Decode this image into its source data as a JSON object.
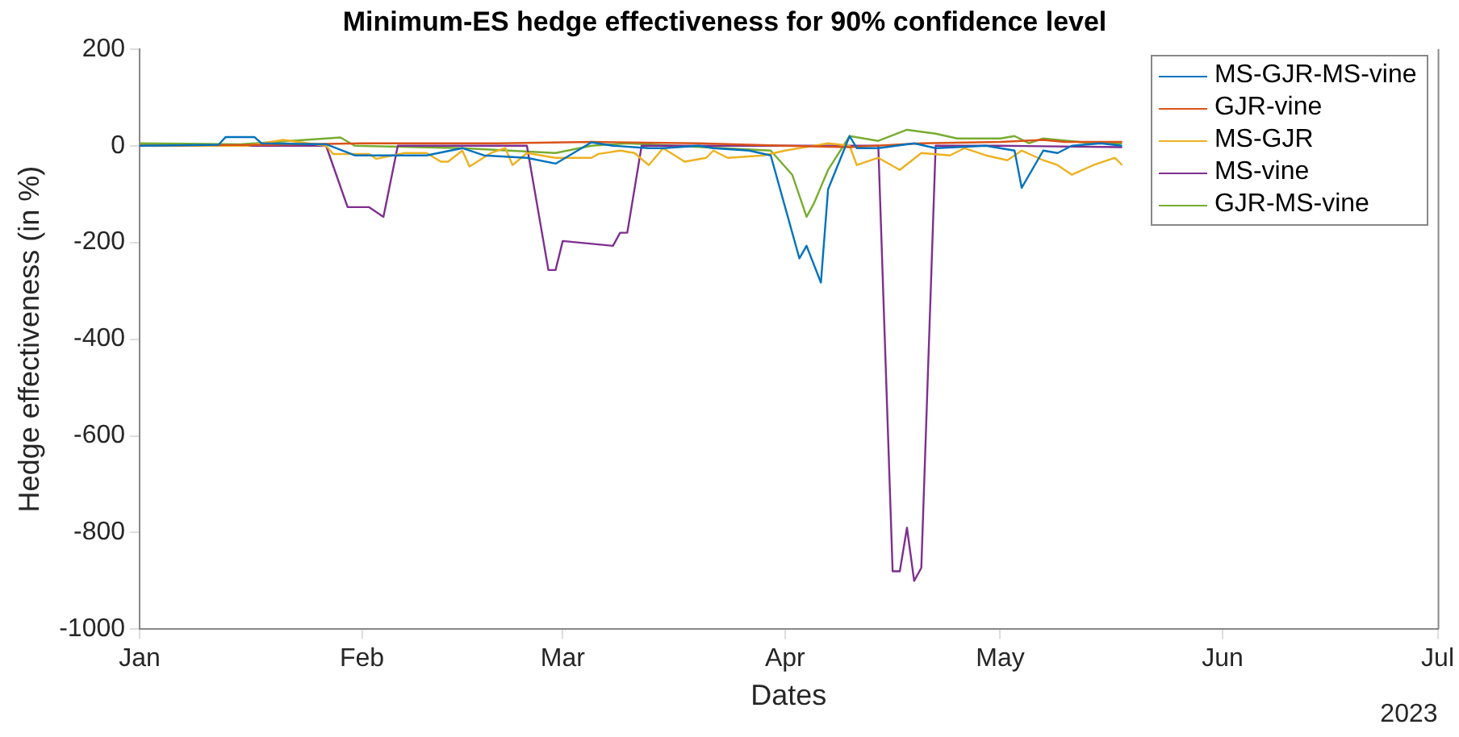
{
  "chart_data": {
    "type": "line",
    "title": "Minimum-ES hedge effectiveness for 90% confidence level",
    "xlabel": "Dates",
    "ylabel": "Hedge effectiveness (in %)",
    "xlim": [
      "2023-01-01",
      "2023-07-01"
    ],
    "xticks": [
      {
        "value": "2023-01-01",
        "label": "Jan"
      },
      {
        "value": "2023-02-01",
        "label": "Feb"
      },
      {
        "value": "2023-03-01",
        "label": "Mar"
      },
      {
        "value": "2023-04-01",
        "label": "Apr"
      },
      {
        "value": "2023-05-01",
        "label": "May"
      },
      {
        "value": "2023-06-01",
        "label": "Jun"
      },
      {
        "value": "2023-07-01",
        "label": "Jul"
      }
    ],
    "ylim": [
      -1000,
      200
    ],
    "yticks": [
      -1000,
      -800,
      -600,
      -400,
      -200,
      0,
      200
    ],
    "grid": false,
    "legend": "top right",
    "marker": "none",
    "line_style": "solid",
    "annotations": [
      "2023"
    ],
    "series": [
      {
        "name": "MS-GJR-MS-vine",
        "color": "#0072bd",
        "x": [
          "2023-01-01",
          "2023-01-12",
          "2023-01-13",
          "2023-01-17",
          "2023-01-18",
          "2023-01-27",
          "2023-01-31",
          "2023-02-10",
          "2023-02-15",
          "2023-02-18",
          "2023-02-24",
          "2023-02-28",
          "2023-03-05",
          "2023-03-08",
          "2023-03-13",
          "2023-03-15",
          "2023-03-20",
          "2023-03-22",
          "2023-03-27",
          "2023-03-30",
          "2023-04-03",
          "2023-04-04",
          "2023-04-06",
          "2023-04-07",
          "2023-04-10",
          "2023-04-11",
          "2023-04-14",
          "2023-04-19",
          "2023-04-22",
          "2023-04-29",
          "2023-05-03",
          "2023-05-04",
          "2023-05-07",
          "2023-05-09",
          "2023-05-11",
          "2023-05-15",
          "2023-05-18"
        ],
        "values": [
          0,
          2,
          18,
          18,
          5,
          3,
          -20,
          -20,
          -5,
          -20,
          -25,
          -37,
          7,
          0,
          -5,
          -5,
          0,
          -5,
          -10,
          -20,
          -233,
          -207,
          -283,
          -90,
          20,
          -5,
          -5,
          5,
          -5,
          0,
          -10,
          -87,
          -10,
          -15,
          0,
          5,
          0
        ]
      },
      {
        "name": "GJR-vine",
        "color": "#d95319",
        "x": [
          "2023-01-01",
          "2023-01-20",
          "2023-02-01",
          "2023-02-20",
          "2023-03-05",
          "2023-03-20",
          "2023-04-01",
          "2023-04-10",
          "2023-04-20",
          "2023-05-01",
          "2023-05-07",
          "2023-05-10",
          "2023-05-18"
        ],
        "values": [
          0,
          2,
          5,
          5,
          8,
          5,
          0,
          -3,
          5,
          8,
          12,
          8,
          8
        ]
      },
      {
        "name": "MS-GJR",
        "color": "#edb120",
        "x": [
          "2023-01-01",
          "2023-01-16",
          "2023-01-21",
          "2023-01-27",
          "2023-01-28",
          "2023-02-02",
          "2023-02-03",
          "2023-02-07",
          "2023-02-10",
          "2023-02-12",
          "2023-02-13",
          "2023-02-15",
          "2023-02-16",
          "2023-02-19",
          "2023-02-21",
          "2023-02-22",
          "2023-02-24",
          "2023-02-28",
          "2023-03-05",
          "2023-03-06",
          "2023-03-09",
          "2023-03-11",
          "2023-03-13",
          "2023-03-15",
          "2023-03-18",
          "2023-03-21",
          "2023-03-22",
          "2023-03-24",
          "2023-03-29",
          "2023-04-01",
          "2023-04-07",
          "2023-04-10",
          "2023-04-11",
          "2023-04-14",
          "2023-04-17",
          "2023-04-20",
          "2023-04-24",
          "2023-04-26",
          "2023-04-29",
          "2023-05-02",
          "2023-05-04",
          "2023-05-07",
          "2023-05-09",
          "2023-05-11",
          "2023-05-14",
          "2023-05-17",
          "2023-05-18"
        ],
        "values": [
          0,
          0,
          12,
          0,
          -17,
          -17,
          -27,
          -15,
          -15,
          -33,
          -33,
          -10,
          -43,
          -15,
          -5,
          -40,
          -15,
          -25,
          -25,
          -17,
          -10,
          -15,
          -40,
          -5,
          -33,
          -25,
          -10,
          -25,
          -20,
          -10,
          5,
          0,
          -40,
          -25,
          -50,
          -15,
          -20,
          -5,
          -20,
          -30,
          -10,
          -30,
          -40,
          -60,
          -40,
          -25,
          -40
        ]
      },
      {
        "name": "MS-vine",
        "color": "#7e2f8e",
        "x": [
          "2023-01-01",
          "2023-01-27",
          "2023-01-30",
          "2023-02-02",
          "2023-02-04",
          "2023-02-06",
          "2023-02-24",
          "2023-02-27",
          "2023-02-28",
          "2023-03-01",
          "2023-03-08",
          "2023-03-09",
          "2023-03-10",
          "2023-03-12",
          "2023-04-14",
          "2023-04-16",
          "2023-04-17",
          "2023-04-18",
          "2023-04-19",
          "2023-04-20",
          "2023-04-22",
          "2023-05-01",
          "2023-05-18"
        ],
        "values": [
          0,
          0,
          -127,
          -127,
          -147,
          0,
          0,
          -257,
          -257,
          -197,
          -207,
          -180,
          -180,
          0,
          0,
          -880,
          -880,
          -790,
          -900,
          -873,
          0,
          0,
          -3
        ]
      },
      {
        "name": "GJR-MS-vine",
        "color": "#77ac30",
        "x": [
          "2023-01-01",
          "2023-01-15",
          "2023-01-20",
          "2023-01-29",
          "2023-01-31",
          "2023-02-15",
          "2023-02-28",
          "2023-03-05",
          "2023-03-10",
          "2023-03-30",
          "2023-04-02",
          "2023-04-04",
          "2023-04-05",
          "2023-04-07",
          "2023-04-10",
          "2023-04-14",
          "2023-04-18",
          "2023-04-22",
          "2023-04-25",
          "2023-05-01",
          "2023-05-03",
          "2023-05-05",
          "2023-05-07",
          "2023-05-14",
          "2023-05-18"
        ],
        "values": [
          5,
          3,
          8,
          17,
          0,
          -5,
          -15,
          0,
          5,
          -10,
          -60,
          -147,
          -120,
          -50,
          20,
          10,
          33,
          25,
          15,
          15,
          20,
          5,
          15,
          5,
          5
        ]
      }
    ]
  }
}
